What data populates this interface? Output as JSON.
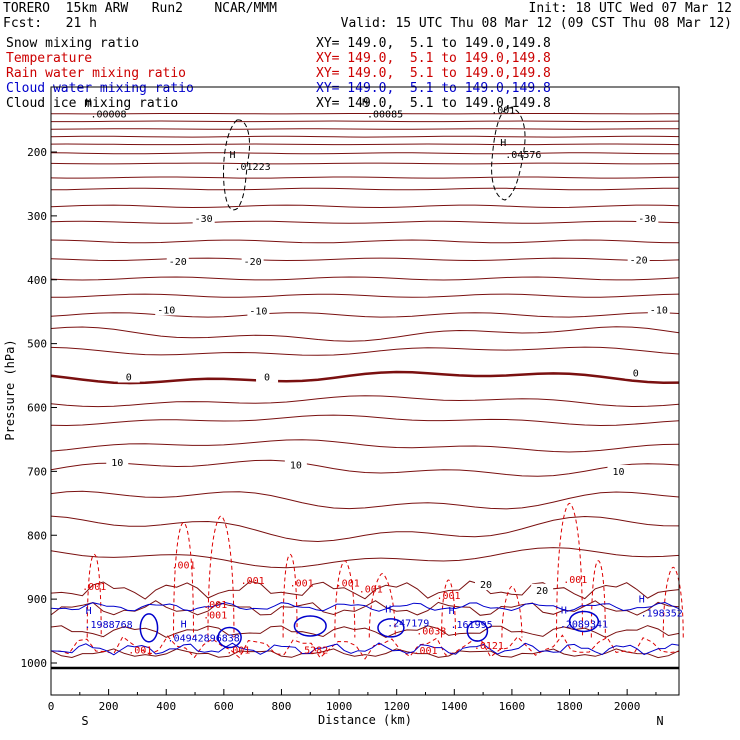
{
  "header": {
    "model_line": "TORERO  15km ARW   Run2    NCAR/MMM",
    "init_line": "Init: 18 UTC Wed 07 Mar 12",
    "fcst_line": "Fcst:   21 h",
    "valid_line": "Valid: 15 UTC Thu 08 Mar 12 (09 CST Thu 08 Mar 12)"
  },
  "legend": [
    {
      "label": "Snow mixing ratio",
      "xy": "XY= 149.0,  5.1 to 149.0,149.8",
      "color": "#000000"
    },
    {
      "label": "Temperature",
      "xy": "XY= 149.0,  5.1 to 149.0,149.8",
      "color": "#cc0000"
    },
    {
      "label": "Rain water mixing ratio",
      "xy": "XY= 149.0,  5.1 to 149.0,149.8",
      "color": "#cc0000"
    },
    {
      "label": "Cloud water mixing ratio",
      "xy": "XY= 149.0,  5.1 to 149.0,149.8",
      "color": "#0000cc"
    },
    {
      "label": "Cloud ice mixing ratio",
      "xy": "XY= 149.0,  5.1 to 149.0,149.8",
      "color": "#000000"
    }
  ],
  "chart_data": {
    "type": "cross-section contour",
    "xlabel": "Distance (km)",
    "ylabel": "Pressure (hPa)",
    "xlim": [
      0,
      2180
    ],
    "ylim": [
      1050,
      100
    ],
    "xticks": [
      0,
      200,
      400,
      600,
      800,
      1000,
      1200,
      1400,
      1600,
      1800,
      2000
    ],
    "yticks": [
      200,
      300,
      400,
      500,
      600,
      700,
      800,
      900,
      1000
    ],
    "endpoints": {
      "left": "S",
      "right": "N"
    },
    "temperature_contour_labels": [
      {
        "x": 530,
        "p": 305,
        "text": "-30"
      },
      {
        "x": 2070,
        "p": 305,
        "text": "-30"
      },
      {
        "x": 440,
        "p": 372,
        "text": "-20"
      },
      {
        "x": 700,
        "p": 372,
        "text": "-20"
      },
      {
        "x": 2040,
        "p": 370,
        "text": "-20"
      },
      {
        "x": 400,
        "p": 448,
        "text": "-10"
      },
      {
        "x": 720,
        "p": 450,
        "text": "-10"
      },
      {
        "x": 2110,
        "p": 448,
        "text": "-10"
      },
      {
        "x": 270,
        "p": 553,
        "text": "0"
      },
      {
        "x": 750,
        "p": 553,
        "text": "0"
      },
      {
        "x": 2030,
        "p": 547,
        "text": "0"
      },
      {
        "x": 230,
        "p": 687,
        "text": "10"
      },
      {
        "x": 850,
        "p": 691,
        "text": "10"
      },
      {
        "x": 1970,
        "p": 701,
        "text": "10"
      },
      {
        "x": 1510,
        "p": 878,
        "text": "20"
      },
      {
        "x": 1705,
        "p": 887,
        "text": "20"
      }
    ],
    "snow_maxima": [
      {
        "x": 130,
        "p": 143,
        "value": ".00008"
      },
      {
        "x": 1090,
        "p": 143,
        "value": ".00085"
      },
      {
        "x": 630,
        "p": 225,
        "value": ".01223"
      },
      {
        "x": 1570,
        "p": 206,
        "value": ".04576"
      }
    ],
    "snow_contour_labels": [
      ".001"
    ],
    "rain_contour_labels": [
      ".001",
      ".001",
      ".001",
      ".001",
      ".001",
      ".001",
      ".001",
      ".001",
      ".001",
      ".001",
      ".001",
      ".001",
      ".001"
    ],
    "rain_maxima": [
      {
        "x": 1320,
        "p": 955,
        "value": ".0038"
      },
      {
        "x": 910,
        "p": 985,
        "value": ".5282"
      },
      {
        "x": 1520,
        "p": 978,
        "value": ".0121"
      }
    ],
    "cloud_water_maxima": [
      {
        "x": 200,
        "p": 942,
        "value": ".1988768"
      },
      {
        "x": 530,
        "p": 963,
        "value": ".04942896838"
      },
      {
        "x": 1240,
        "p": 940,
        "value": ".247179"
      },
      {
        "x": 1460,
        "p": 942,
        "value": ".161995"
      },
      {
        "x": 1850,
        "p": 941,
        "value": ".2089341"
      },
      {
        "x": 2120,
        "p": 924,
        "value": ".198352"
      }
    ]
  }
}
